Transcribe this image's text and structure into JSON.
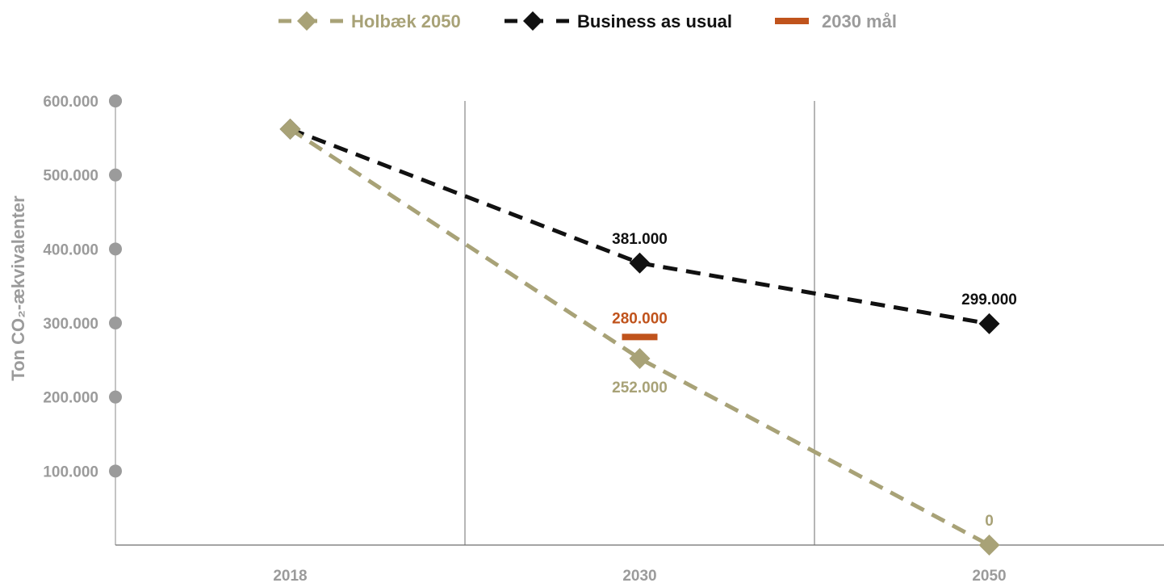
{
  "chart_data": {
    "type": "line",
    "categories": [
      "2018",
      "2030",
      "2050"
    ],
    "ylabel": "Ton CO₂-ækvivalenter",
    "ylim": [
      0,
      600000
    ],
    "y_ticks": [
      {
        "value": 100000,
        "label": "100.000"
      },
      {
        "value": 200000,
        "label": "200.000"
      },
      {
        "value": 300000,
        "label": "300.000"
      },
      {
        "value": 400000,
        "label": "400.000"
      },
      {
        "value": 500000,
        "label": "500.000"
      },
      {
        "value": 600000,
        "label": "600.000"
      }
    ],
    "grid": "vertical",
    "legend_position": "top-center",
    "series": [
      {
        "name": "Holbæk 2050",
        "color": "#a8a277",
        "style": "dashed",
        "marker": "diamond",
        "values": [
          562000,
          252000,
          0
        ],
        "labels": [
          "",
          "252.000",
          "0"
        ]
      },
      {
        "name": "Business as usual",
        "color": "#111111",
        "style": "dashed",
        "marker": "diamond",
        "values": [
          562000,
          381000,
          299000
        ],
        "labels": [
          "",
          "381.000",
          "299.000"
        ]
      }
    ],
    "target": {
      "name": "2030 mål",
      "color": "#c0531c",
      "category": "2030",
      "value": 280000,
      "label": "280.000"
    },
    "axis_color": "#9b9b9b"
  }
}
